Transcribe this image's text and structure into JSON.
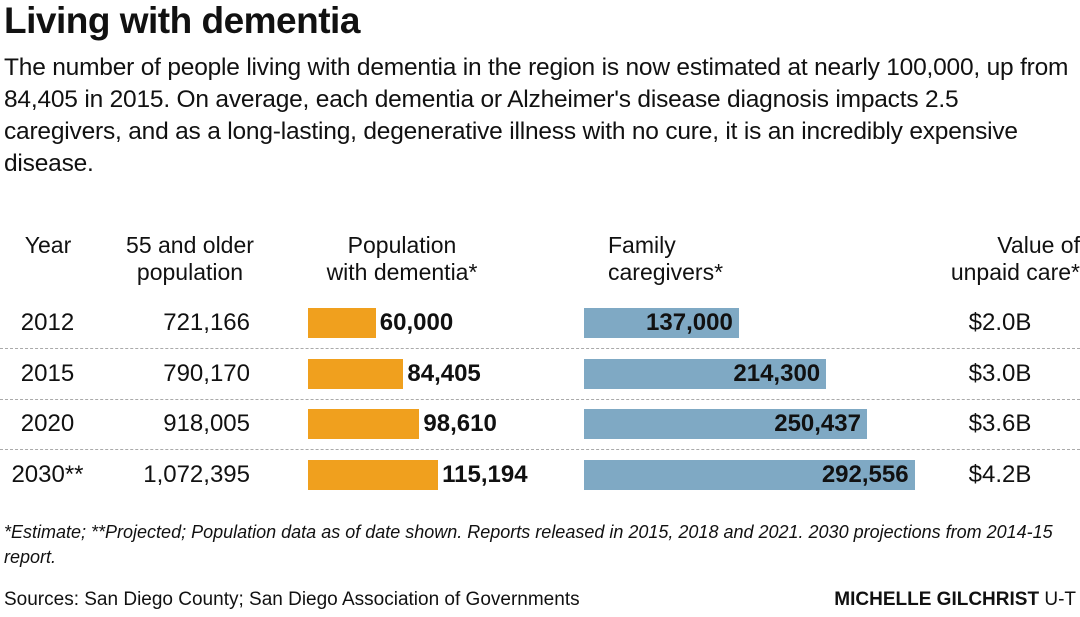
{
  "title": "Living with dementia",
  "intro": "The number of people living with dementia in the region is now estimated at nearly 100,000, up from 84,405 in 2015. On average, each dementia or Alzheimer's disease diagnosis impacts 2.5 caregivers, and as a long-lasting, degenerative illness with no cure, it is an incredibly expensive disease.",
  "chart_data": {
    "type": "table",
    "columns": [
      "Year",
      "55 and older population",
      "Population with dementia*",
      "Family caregivers*",
      "Value of unpaid care*"
    ],
    "header_lines": [
      [
        "Year"
      ],
      [
        "55 and older",
        "population"
      ],
      [
        "Population",
        "with dementia*"
      ],
      [
        "Family",
        "caregivers*"
      ],
      [
        "Value of",
        "unpaid care*"
      ]
    ],
    "rows": [
      {
        "year": "2012",
        "pop55": "721,166",
        "dementia": 60000,
        "dementia_label": "60,000",
        "caregivers": 137000,
        "caregivers_label": "137,000",
        "care_value": "$2.0B"
      },
      {
        "year": "2015",
        "pop55": "790,170",
        "dementia": 84405,
        "dementia_label": "84,405",
        "caregivers": 214300,
        "caregivers_label": "214,300",
        "care_value": "$3.0B"
      },
      {
        "year": "2020",
        "pop55": "918,005",
        "dementia": 98610,
        "dementia_label": "98,610",
        "caregivers": 250437,
        "caregivers_label": "250,437",
        "care_value": "$3.6B"
      },
      {
        "year": "2030**",
        "pop55": "1,072,395",
        "dementia": 115194,
        "dementia_label": "115,194",
        "caregivers": 292556,
        "caregivers_label": "292,556",
        "care_value": "$4.2B"
      }
    ],
    "colors": {
      "dementia": "#f0a01e",
      "caregivers": "#7fa9c4"
    }
  },
  "note": "*Estimate; **Projected; Population data as of date shown. Reports released in 2015, 2018 and 2021. 2030 projections from 2014-15 report.",
  "sources": "Sources: San Diego County; San Diego Association of Governments",
  "credit_name": "MICHELLE GILCHRIST",
  "credit_org": "U-T"
}
